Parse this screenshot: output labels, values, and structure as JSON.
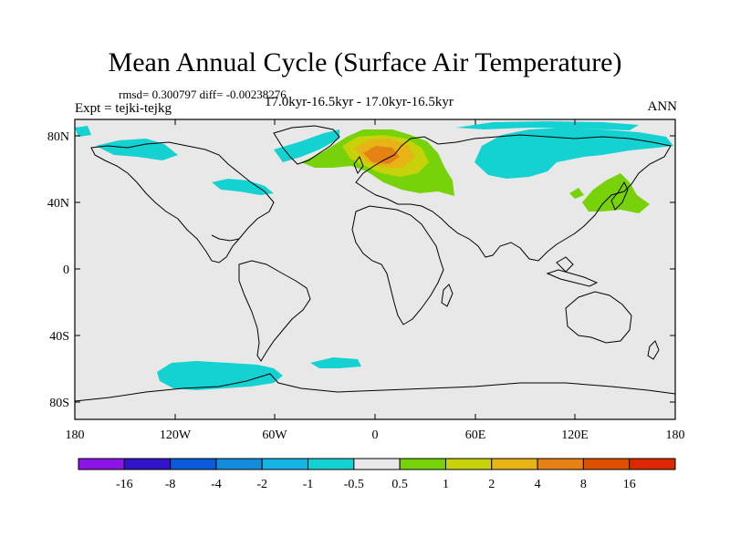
{
  "title": "Mean Annual Cycle (Surface Air Temperature)",
  "stats": "rmsd= 0.300797 diff= -0.00238276",
  "experiment": "Expt = tejki-tejkg",
  "period": "17.0kyr-16.5kyr - 17.0kyr-16.5kyr",
  "season": "ANN",
  "lat_labels": [
    "80N",
    "40N",
    "0",
    "40S",
    "80S"
  ],
  "lon_labels": [
    "180",
    "120W",
    "60W",
    "0",
    "60E",
    "120E",
    "180"
  ],
  "colorbar": {
    "labels": [
      "-16",
      "-8",
      "-4",
      "-2",
      "-1",
      "-0.5",
      "0.5",
      "1",
      "2",
      "4",
      "8",
      "16"
    ],
    "colors": [
      "#8c14e6",
      "#3214c8",
      "#0a5adc",
      "#148cdc",
      "#14b4e6",
      "#14d2d2",
      "#e8e8e8",
      "#78d20a",
      "#c8d20a",
      "#e6b414",
      "#e68214",
      "#dc5000",
      "#dc2800"
    ]
  },
  "colors": {
    "ocean": "#e8e8e8",
    "coast": "#000000"
  }
}
